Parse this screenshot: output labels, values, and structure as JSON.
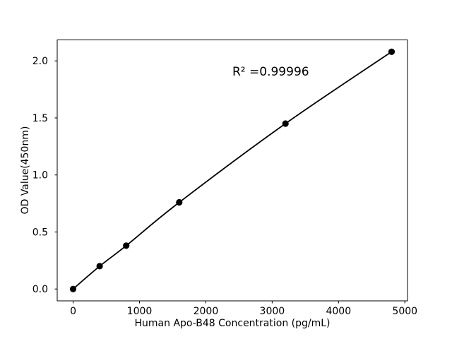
{
  "figure": {
    "background": "#ffffff",
    "foreground": "#000000"
  },
  "chart_data": {
    "type": "line",
    "x": [
      0,
      400,
      800,
      1600,
      3200,
      4800
    ],
    "y": [
      0.0,
      0.2,
      0.38,
      0.76,
      1.45,
      2.08
    ],
    "title": "",
    "xlabel": "Human Apo-B48 Concentration (pg/mL)",
    "ylabel": "OD Value(450nm)",
    "xtick_values": [
      0,
      1000,
      2000,
      3000,
      4000,
      5000
    ],
    "xtick_labels": [
      "0",
      "1000",
      "2000",
      "3000",
      "4000",
      "5000"
    ],
    "ytick_values": [
      0.0,
      0.5,
      1.0,
      1.5,
      2.0
    ],
    "ytick_labels": [
      "0.0",
      "0.5",
      "1.0",
      "1.5",
      "2.0"
    ],
    "xlim": [
      -240,
      5040
    ],
    "ylim": [
      -0.104,
      2.184
    ],
    "grid": false,
    "legend": null,
    "line_color": "#000000",
    "marker": {
      "shape": "circle",
      "color": "#000000",
      "radius": 4.6
    },
    "annotation": {
      "text": "R² =0.99996",
      "x": 2400,
      "y": 1.9
    }
  }
}
